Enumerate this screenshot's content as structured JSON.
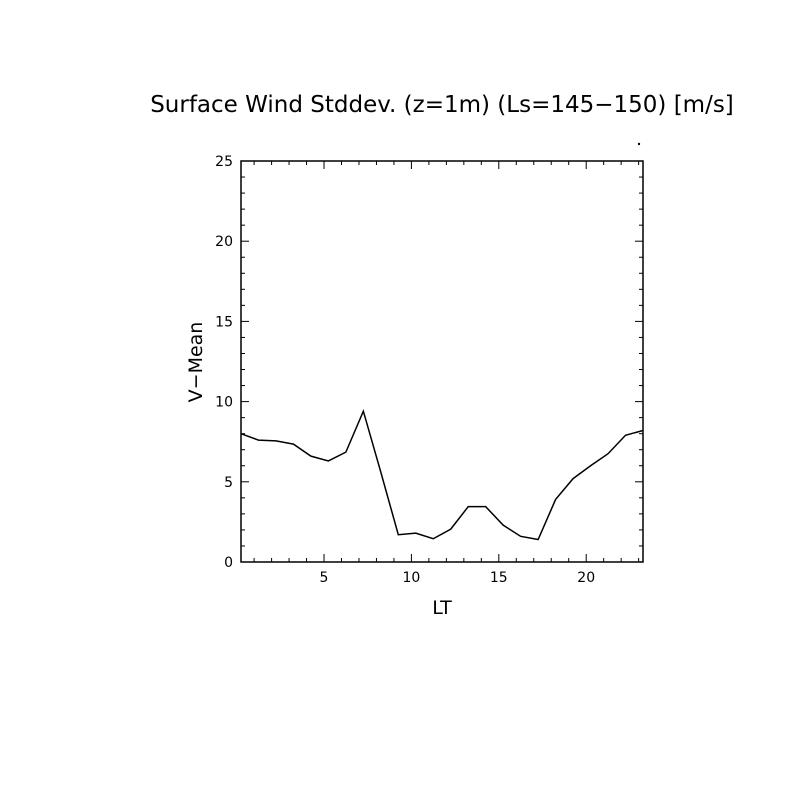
{
  "chart_data": {
    "type": "line",
    "title": "Surface Wind Stddev. (z=1m) (Ls=145−150) [m/s]",
    "xlabel": "LT",
    "ylabel": "V−Mean",
    "xlim": [
      0.25,
      23.25
    ],
    "ylim": [
      0,
      25
    ],
    "x_ticks": [
      5,
      10,
      15,
      20
    ],
    "y_ticks": [
      0,
      5,
      10,
      15,
      20,
      25
    ],
    "x_tick_labels": [
      "5",
      "10",
      "15",
      "20"
    ],
    "y_tick_labels": [
      "0",
      "5",
      "10",
      "15",
      "20",
      "25"
    ],
    "grid": false,
    "series": [
      {
        "x": [
          0.25,
          1.25,
          2.25,
          3.25,
          4.25,
          5.25,
          6.25,
          7.25,
          8.25,
          9.25,
          10.25,
          11.25,
          12.25,
          13.25,
          14.25,
          15.25,
          16.25,
          17.25,
          18.25,
          19.25,
          20.25,
          21.25,
          22.25,
          23.25
        ],
        "y": [
          8.0,
          7.6,
          7.55,
          7.35,
          6.6,
          6.3,
          6.85,
          9.4,
          5.6,
          1.7,
          1.8,
          1.45,
          2.05,
          3.45,
          3.45,
          2.3,
          1.6,
          1.4,
          3.9,
          5.2,
          6.0,
          6.75,
          7.9,
          8.2
        ],
        "color": "#000000"
      }
    ]
  }
}
